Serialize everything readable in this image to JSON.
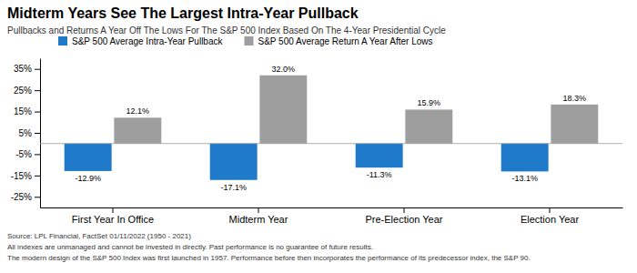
{
  "chart_data": {
    "type": "bar",
    "title": "Midterm Years See The Largest Intra-Year Pullback",
    "subtitle": "Pullbacks and Returns A Year Off The Lows For The S&P 500 Index Based On The 4-Year Presidential Cycle",
    "categories": [
      "First Year In Office",
      "Midterm Year",
      "Pre-Election Year",
      "Election Year"
    ],
    "series": [
      {
        "name": "S&P 500 Average Intra-Year Pullback",
        "color": "#1f7bc9",
        "values": [
          -12.9,
          -17.1,
          -11.3,
          -13.1
        ],
        "value_labels": [
          "-12.9%",
          "-17.1%",
          "-11.3%",
          "-13.1%"
        ]
      },
      {
        "name": "S&P 500 Average Return A Year After Lows",
        "color": "#9e9e9e",
        "values": [
          12.1,
          32.0,
          15.9,
          18.3
        ],
        "value_labels": [
          "12.1%",
          "32.0%",
          "15.9%",
          "18.3%"
        ]
      }
    ],
    "ylim": [
      -30,
      40
    ],
    "yticks": [
      {
        "value": -25,
        "label": "-25%"
      },
      {
        "value": -15,
        "label": "-15%"
      },
      {
        "value": -5,
        "label": "-5%"
      },
      {
        "value": 5,
        "label": "5%"
      },
      {
        "value": 15,
        "label": "15%"
      },
      {
        "value": 25,
        "label": "25%"
      },
      {
        "value": 35,
        "label": "35%"
      }
    ],
    "grid": false,
    "legend": "upper left",
    "data_labels": true,
    "annotations": [
      "Source: LPL Financial, FactSet 01/11/2022 (1950 - 2021)",
      "All indexes are unmanaged and cannot be invested in directly. Past performance is no guarantee of future results.",
      "The modern design of the S&P 500 Index was first launched in 1957. Performance before then incorporates the performance of its predecessor index, the S&P 90."
    ]
  }
}
